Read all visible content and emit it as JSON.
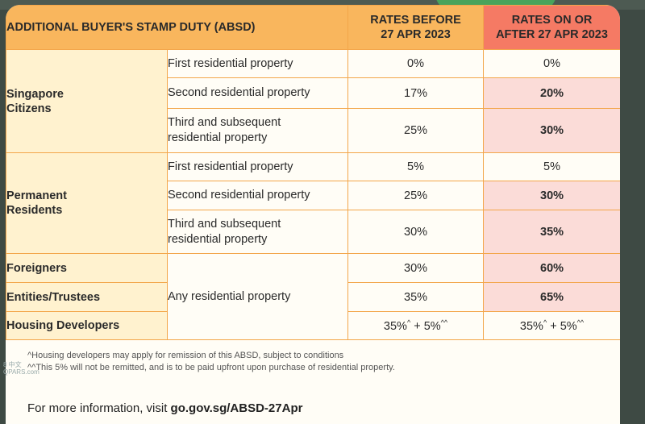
{
  "table": {
    "header": {
      "title": "ADDITIONAL BUYER'S STAMP DUTY (ABSD)",
      "before_line1": "RATES BEFORE",
      "before_line2": "27 APR 2023",
      "after_line1": "RATES ON OR",
      "after_line2": "AFTER 27 APR 2023"
    },
    "groups": {
      "sc": {
        "line1": "Singapore",
        "line2": "Citizens"
      },
      "pr": {
        "line1": "Permanent",
        "line2": "Residents"
      },
      "foreigners": "Foreigners",
      "entities": "Entities/Trustees",
      "developers": "Housing Developers"
    },
    "property": {
      "first": "First residential property",
      "second": "Second residential property",
      "third_line1": "Third and subsequent",
      "third_line2": "residential property",
      "any": "Any residential property"
    },
    "rates": {
      "sc_first_before": "0%",
      "sc_first_after": "0%",
      "sc_second_before": "17%",
      "sc_second_after": "20%",
      "sc_third_before": "25%",
      "sc_third_after": "30%",
      "pr_first_before": "5%",
      "pr_first_after": "5%",
      "pr_second_before": "25%",
      "pr_second_after": "30%",
      "pr_third_before": "30%",
      "pr_third_after": "35%",
      "foreigners_before": "30%",
      "foreigners_after": "60%",
      "entities_before": "35%",
      "entities_after": "65%",
      "dev_before_a": "35%",
      "dev_before_a_mark": "^",
      "dev_plus": " + 5%",
      "dev_b_mark": "^^",
      "dev_after_a": "35%",
      "dev_after_a_mark": "^"
    }
  },
  "notes": {
    "line1": "^Housing developers may apply for remission of this ABSD, subject to conditions",
    "line2": "^^This 5% will not be remitted, and is to be paid upfront upon purchase of residential property."
  },
  "footer": {
    "prefix": "For more information, visit ",
    "link": "go.gov.sg/ABSD-27Apr"
  },
  "watermark": "8 中文 QPARS.com",
  "colors": {
    "header_orange": "#f9b65d",
    "header_red": "#f57a64",
    "highlight_bg": "#fbdcd8",
    "highlight_text": "#d94a52",
    "border": "#f3a64a"
  }
}
